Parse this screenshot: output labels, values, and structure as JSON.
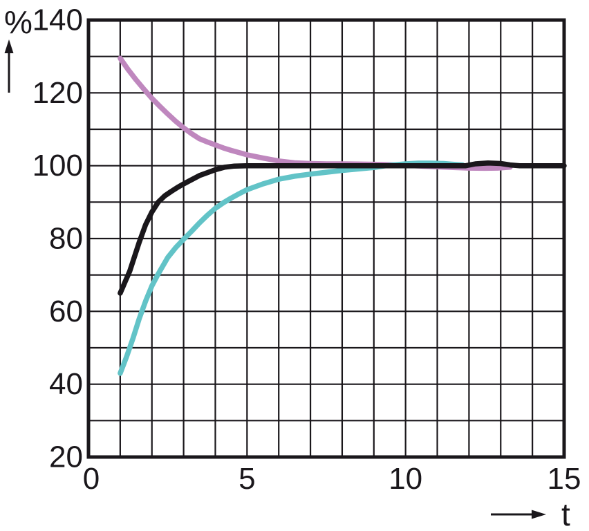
{
  "page": {
    "background_color": "#ffffff",
    "axis_color": "#1a171b",
    "grid_color": "#1a171b"
  },
  "chart_data": {
    "type": "line",
    "title": "",
    "xlabel": "t",
    "ylabel": "%",
    "xlim": [
      0,
      15
    ],
    "ylim": [
      20,
      140
    ],
    "x_grid_step": 1,
    "y_grid_step": 10,
    "grid": true,
    "legend": "none",
    "x_ticks": [
      0,
      5,
      10,
      15
    ],
    "y_ticks": [
      140,
      120,
      100,
      80,
      60,
      40,
      20
    ],
    "steady_state_value": 100,
    "series": [
      {
        "name": "pink-curve",
        "color": "#bf87be",
        "description": "decays from above toward 100%",
        "points": [
          [
            1,
            129.5
          ],
          [
            1.25,
            126.4
          ],
          [
            1.5,
            123.6
          ],
          [
            1.75,
            121.0
          ],
          [
            2,
            118.5
          ],
          [
            2.25,
            116.3
          ],
          [
            2.5,
            114.2
          ],
          [
            2.75,
            112.2
          ],
          [
            3,
            110.4
          ],
          [
            3.25,
            108.8
          ],
          [
            3.5,
            107.4
          ],
          [
            3.75,
            106.5
          ],
          [
            4,
            105.7
          ],
          [
            4.25,
            104.9
          ],
          [
            4.5,
            104.2
          ],
          [
            5,
            103.0
          ],
          [
            5.5,
            102.1
          ],
          [
            6,
            101.3
          ],
          [
            6.5,
            100.8
          ],
          [
            7,
            100.6
          ],
          [
            7.5,
            100.5
          ],
          [
            8,
            100.5
          ],
          [
            8.5,
            100.45
          ],
          [
            9,
            100.4
          ],
          [
            9.5,
            100.3
          ],
          [
            10,
            100.1
          ],
          [
            10.5,
            99.9
          ],
          [
            11,
            99.7
          ],
          [
            11.5,
            99.5
          ],
          [
            12,
            99.35
          ],
          [
            12.5,
            99.3
          ],
          [
            12.9,
            99.35
          ],
          [
            13.3,
            99.6
          ]
        ]
      },
      {
        "name": "cyan-curve",
        "color": "#62c3c7",
        "description": "rises slowly from below toward 100% with slight overshoot",
        "points": [
          [
            1,
            43
          ],
          [
            1.2,
            47.5
          ],
          [
            1.4,
            52.5
          ],
          [
            1.6,
            58
          ],
          [
            1.8,
            62.8
          ],
          [
            2,
            67
          ],
          [
            2.2,
            70.3
          ],
          [
            2.5,
            74.8
          ],
          [
            2.75,
            77.5
          ],
          [
            3,
            79.8
          ],
          [
            3.25,
            82
          ],
          [
            3.5,
            84.3
          ],
          [
            3.75,
            86.4
          ],
          [
            4,
            88.3
          ],
          [
            4.25,
            89.8
          ],
          [
            4.5,
            91.1
          ],
          [
            4.75,
            92.3
          ],
          [
            5,
            93.4
          ],
          [
            5.5,
            95.0
          ],
          [
            6,
            96.3
          ],
          [
            6.5,
            97.1
          ],
          [
            7,
            97.7
          ],
          [
            7.5,
            98.2
          ],
          [
            8,
            98.7
          ],
          [
            8.5,
            99.1
          ],
          [
            9,
            99.5
          ],
          [
            9.3,
            99.9
          ],
          [
            9.6,
            100.2
          ],
          [
            10,
            100.5
          ],
          [
            10.4,
            100.7
          ],
          [
            10.8,
            100.7
          ],
          [
            11.2,
            100.6
          ],
          [
            11.5,
            100.4
          ],
          [
            11.8,
            100.2
          ]
        ]
      },
      {
        "name": "black-curve",
        "color": "#1a171b",
        "description": "rises quickly from below and settles at 100%",
        "points": [
          [
            1,
            65
          ],
          [
            1.15,
            68
          ],
          [
            1.3,
            71
          ],
          [
            1.45,
            75
          ],
          [
            1.6,
            79
          ],
          [
            1.8,
            83.8
          ],
          [
            2,
            87.3
          ],
          [
            2.2,
            90
          ],
          [
            2.4,
            91.7
          ],
          [
            2.6,
            92.9
          ],
          [
            2.8,
            94
          ],
          [
            3,
            95
          ],
          [
            3.5,
            97.3
          ],
          [
            4,
            98.9
          ],
          [
            4.3,
            99.6
          ],
          [
            4.6,
            99.9
          ],
          [
            5,
            100
          ],
          [
            6,
            100
          ],
          [
            7,
            100
          ],
          [
            8,
            100
          ],
          [
            9,
            100
          ],
          [
            10,
            100
          ],
          [
            11,
            100
          ],
          [
            11.9,
            100
          ],
          [
            12.2,
            100.5
          ],
          [
            12.6,
            100.75
          ],
          [
            13,
            100.6
          ],
          [
            13.3,
            100.2
          ],
          [
            13.6,
            100
          ],
          [
            14.5,
            100
          ],
          [
            15,
            100
          ]
        ]
      }
    ]
  }
}
